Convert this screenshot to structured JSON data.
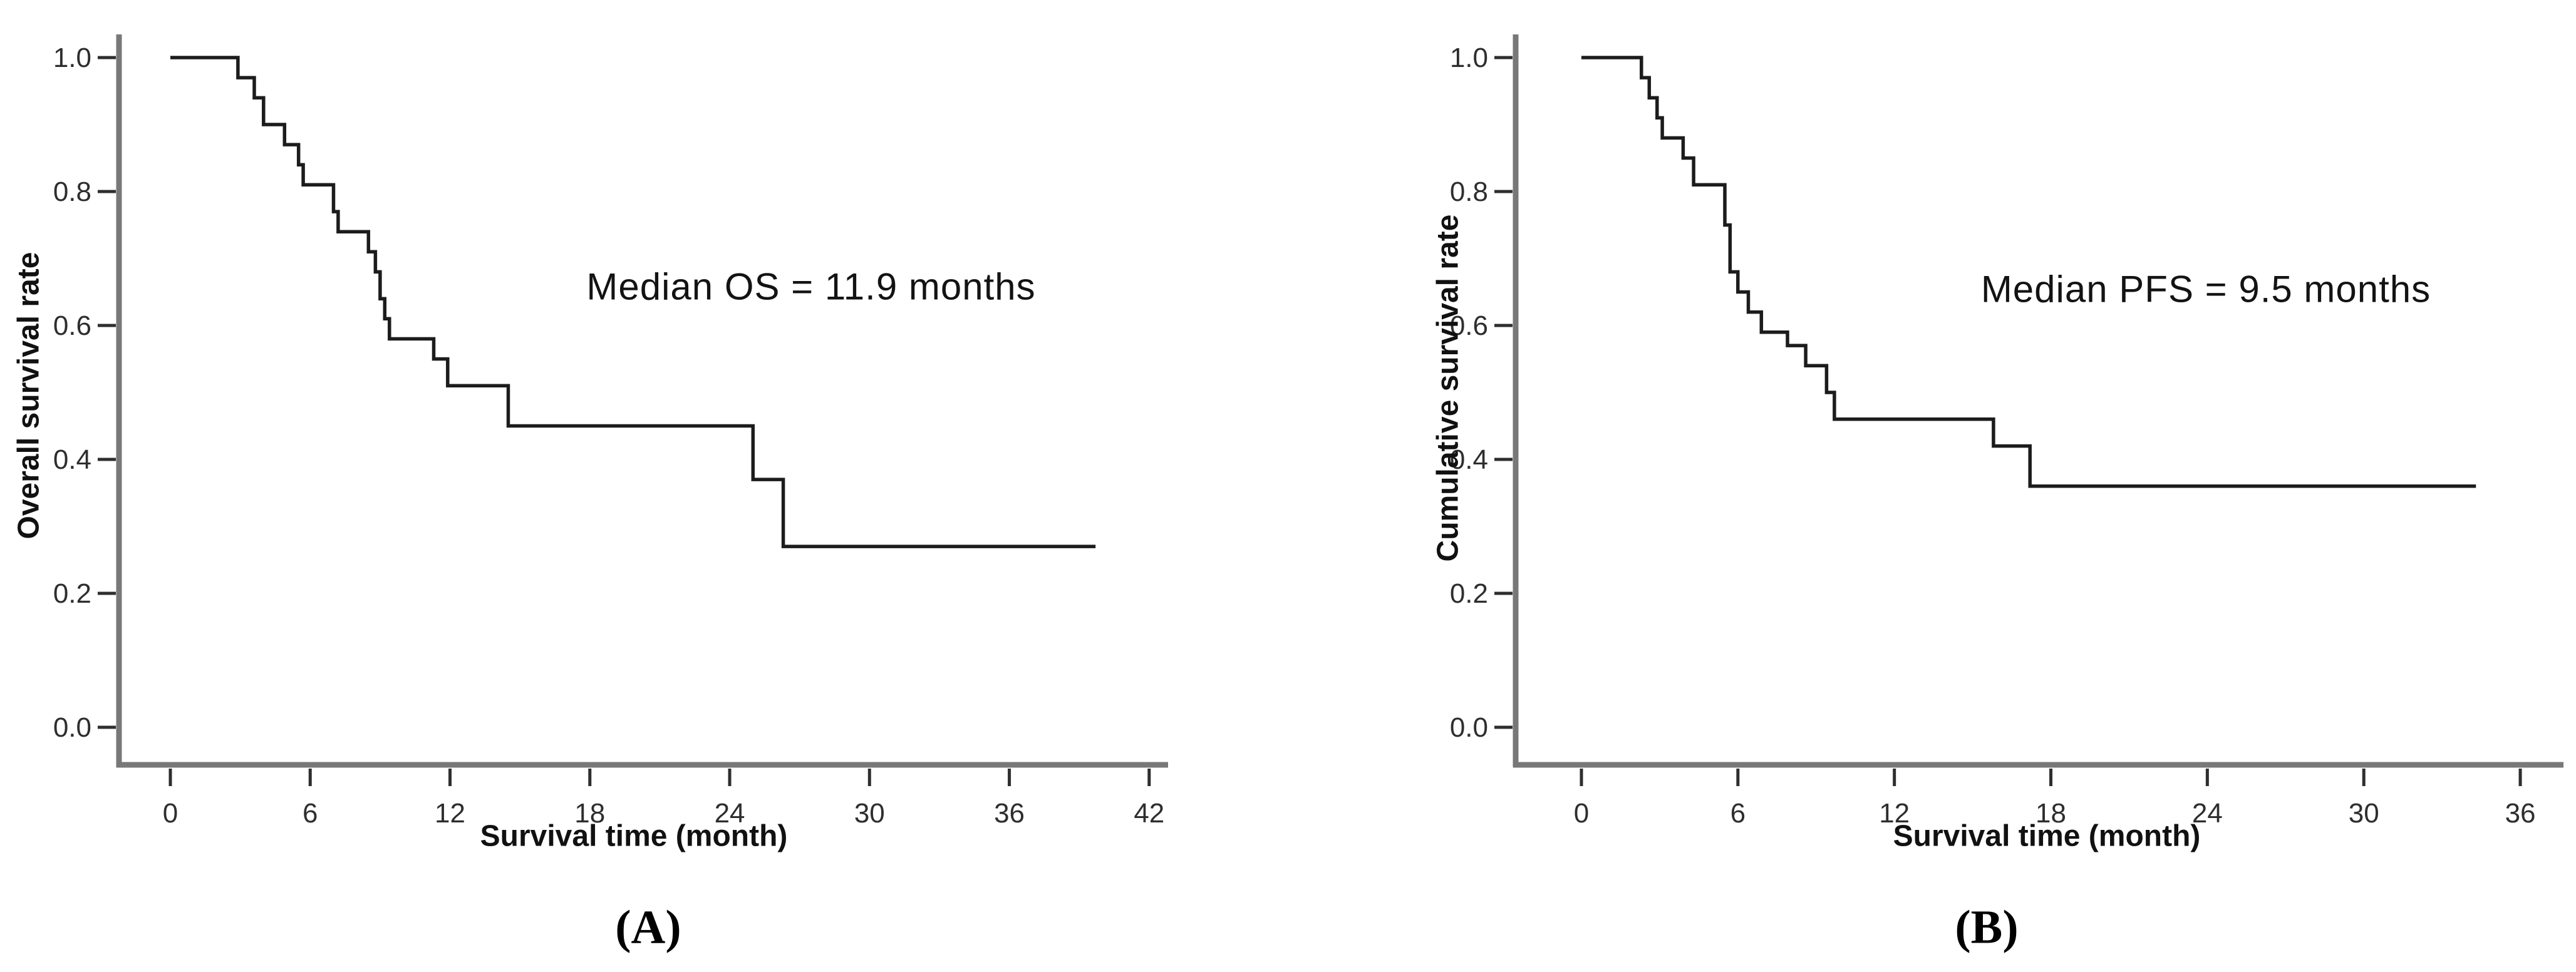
{
  "figure": {
    "background": "#ffffff",
    "curve_color": "#1c1c1c",
    "axis_color": "#787878",
    "tick_color": "#2e2e2e",
    "tick_label_color": "#2e2e2e"
  },
  "panels": [
    {
      "id": "A",
      "caption": "(A)",
      "y_axis_label": "Overall survival rate",
      "x_axis_label": "Survival time (month)",
      "annotation": "Median OS = 11.9 months",
      "x_tick_labels": [
        "0",
        "6",
        "12",
        "18",
        "24",
        "30",
        "36",
        "42"
      ],
      "y_tick_labels": [
        "1.0",
        "0.8",
        "0.6",
        "0.4",
        "0.2",
        "0.0"
      ]
    },
    {
      "id": "B",
      "caption": "(B)",
      "y_axis_label": "Cumulative survival rate",
      "x_axis_label": "Survival time (month)",
      "annotation": "Median PFS = 9.5 months",
      "x_tick_labels": [
        "0",
        "6",
        "12",
        "18",
        "24",
        "30",
        "36"
      ],
      "y_tick_labels": [
        "1.0",
        "0.8",
        "0.6",
        "0.4",
        "0.2",
        "0.0"
      ]
    }
  ],
  "chart_data": [
    {
      "type": "line",
      "subtype": "kaplan-meier-step",
      "title": "(A)",
      "xlabel": "Survival time (month)",
      "ylabel": "Overall survival rate",
      "annotation": "Median OS = 11.9 months",
      "median_months": 11.9,
      "xlim": [
        0,
        42
      ],
      "ylim": [
        0.0,
        1.0
      ],
      "x_ticks": [
        0,
        6,
        12,
        18,
        24,
        30,
        36,
        42
      ],
      "y_ticks": [
        0.0,
        0.2,
        0.4,
        0.6,
        0.8,
        1.0
      ],
      "grid": false,
      "legend": "none",
      "series": [
        {
          "name": "Overall survival",
          "start": {
            "x": 0,
            "y": 1.0
          },
          "end_x": 39.7,
          "steps": [
            [
              2.9,
              0.97
            ],
            [
              3.6,
              0.94
            ],
            [
              4.0,
              0.9
            ],
            [
              4.9,
              0.87
            ],
            [
              5.5,
              0.84
            ],
            [
              5.7,
              0.81
            ],
            [
              7.0,
              0.77
            ],
            [
              7.2,
              0.74
            ],
            [
              8.5,
              0.71
            ],
            [
              8.8,
              0.68
            ],
            [
              9.0,
              0.64
            ],
            [
              9.2,
              0.61
            ],
            [
              9.4,
              0.58
            ],
            [
              11.3,
              0.55
            ],
            [
              11.9,
              0.51
            ],
            [
              14.5,
              0.45
            ],
            [
              25.0,
              0.37
            ],
            [
              26.3,
              0.27
            ]
          ]
        }
      ]
    },
    {
      "type": "line",
      "subtype": "kaplan-meier-step",
      "title": "(B)",
      "xlabel": "Survival time (month)",
      "ylabel": "Cumulative survival rate",
      "annotation": "Median PFS = 9.5 months",
      "median_months": 9.5,
      "xlim": [
        0,
        36
      ],
      "ylim": [
        0.0,
        1.0
      ],
      "x_ticks": [
        0,
        6,
        12,
        18,
        24,
        30,
        36
      ],
      "y_ticks": [
        0.0,
        0.2,
        0.4,
        0.6,
        0.8,
        1.0
      ],
      "grid": false,
      "legend": "none",
      "series": [
        {
          "name": "Progression-free survival",
          "start": {
            "x": 0,
            "y": 1.0
          },
          "end_x": 34.3,
          "steps": [
            [
              2.3,
              0.97
            ],
            [
              2.6,
              0.94
            ],
            [
              2.9,
              0.91
            ],
            [
              3.1,
              0.88
            ],
            [
              3.9,
              0.85
            ],
            [
              4.3,
              0.81
            ],
            [
              5.5,
              0.75
            ],
            [
              5.7,
              0.68
            ],
            [
              6.0,
              0.65
            ],
            [
              6.4,
              0.62
            ],
            [
              6.9,
              0.59
            ],
            [
              7.9,
              0.57
            ],
            [
              8.6,
              0.54
            ],
            [
              9.4,
              0.5
            ],
            [
              9.7,
              0.46
            ],
            [
              15.8,
              0.42
            ],
            [
              17.2,
              0.36
            ]
          ]
        }
      ]
    }
  ]
}
